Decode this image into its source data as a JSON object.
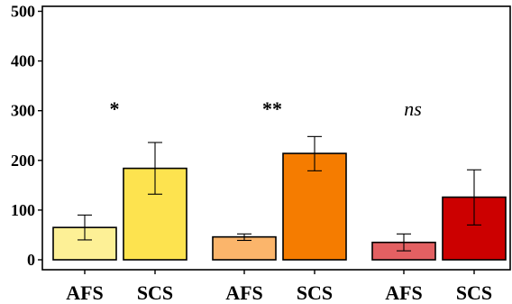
{
  "chart_data": {
    "type": "bar",
    "title": "",
    "xlabel": "",
    "ylabel": "",
    "ylim": [
      -20,
      510
    ],
    "yticks": [
      0,
      100,
      200,
      300,
      400,
      500
    ],
    "grid": false,
    "legend": "none",
    "groups": [
      {
        "annotation": "*",
        "annotation_italic": false,
        "bars": [
          {
            "category": "AFS",
            "value": 65,
            "error": [
              40,
              90
            ],
            "color": "#FDF096"
          },
          {
            "category": "SCS",
            "value": 184,
            "error": [
              132,
              236
            ],
            "color": "#FDE34F"
          }
        ]
      },
      {
        "annotation": "**",
        "annotation_italic": false,
        "bars": [
          {
            "category": "AFS",
            "value": 46,
            "error": [
              39,
              52
            ],
            "color": "#FBB56B"
          },
          {
            "category": "SCS",
            "value": 214,
            "error": [
              179,
              248
            ],
            "color": "#F57C00"
          }
        ]
      },
      {
        "annotation": "ns",
        "annotation_italic": true,
        "bars": [
          {
            "category": "AFS",
            "value": 35,
            "error": [
              18,
              52
            ],
            "color": "#E36062"
          },
          {
            "category": "SCS",
            "value": 126,
            "error": [
              70,
              181
            ],
            "color": "#CC0000"
          }
        ]
      }
    ]
  }
}
